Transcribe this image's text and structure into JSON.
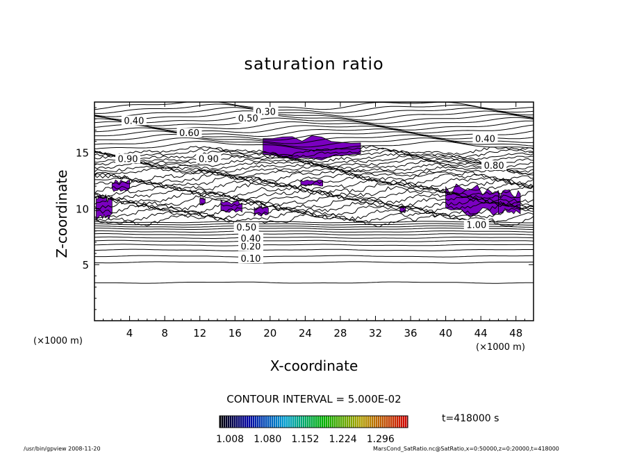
{
  "title": "saturation ratio",
  "contour_interval": "CONTOUR INTERVAL = 5.000E-02",
  "time_label": "t=418000 s",
  "footer_left": "/usr/bin/gpview   2008-11-20",
  "footer_right": "MarsCond_SatRatio.nc@SatRatio,x=0:50000,z=0:20000,t=418000",
  "colors": {
    "shade": "#7a00c0",
    "line": "#000000",
    "background": "#ffffff"
  },
  "chart_data": {
    "type": "contour",
    "title": "saturation ratio",
    "xlabel": "X-coordinate",
    "ylabel": "Z-coordinate",
    "x_unit": "(×1000 m)",
    "y_unit": "(×1000 m)",
    "xlim": [
      0,
      50
    ],
    "ylim": [
      0,
      19.5
    ],
    "xticks": [
      4,
      8,
      12,
      16,
      20,
      24,
      28,
      32,
      36,
      40,
      44,
      48
    ],
    "yticks": [
      5,
      10,
      15
    ],
    "contour_interval": 0.05,
    "contour_labels": [
      {
        "text": "0.10",
        "x": 17.8,
        "z": 5.5
      },
      {
        "text": "0.20",
        "x": 17.8,
        "z": 6.6
      },
      {
        "text": "0.40",
        "x": 17.8,
        "z": 7.3
      },
      {
        "text": "0.50",
        "x": 17.3,
        "z": 8.3
      },
      {
        "text": "1.00",
        "x": 43.5,
        "z": 8.5
      },
      {
        "text": "0.90",
        "x": 3.8,
        "z": 14.4
      },
      {
        "text": "0.90",
        "x": 13.0,
        "z": 14.4
      },
      {
        "text": "0.60",
        "x": 10.8,
        "z": 16.7
      },
      {
        "text": "0.40",
        "x": 4.5,
        "z": 17.8
      },
      {
        "text": "0.30",
        "x": 19.5,
        "z": 18.6
      },
      {
        "text": "0.50",
        "x": 17.5,
        "z": 18.0
      },
      {
        "text": "0.40",
        "x": 44.5,
        "z": 16.2
      },
      {
        "text": "0.80",
        "x": 45.5,
        "z": 13.8
      }
    ],
    "shaded_regions": [
      {
        "x": [
          0.2,
          2.0
        ],
        "z": [
          9.0,
          11.3
        ]
      },
      {
        "x": [
          2.0,
          4.0
        ],
        "z": [
          11.5,
          12.6
        ]
      },
      {
        "x": [
          23.5,
          26.0
        ],
        "z": [
          12.0,
          12.6
        ]
      },
      {
        "x": [
          19.2,
          30.3
        ],
        "z": [
          14.3,
          16.6
        ]
      },
      {
        "x": [
          40.0,
          46.0
        ],
        "z": [
          9.3,
          12.2
        ]
      },
      {
        "x": [
          46.0,
          48.5
        ],
        "z": [
          9.5,
          11.7
        ]
      },
      {
        "x": [
          12.0,
          12.6
        ],
        "z": [
          10.3,
          11.0
        ]
      },
      {
        "x": [
          14.4,
          16.8
        ],
        "z": [
          9.5,
          10.8
        ]
      },
      {
        "x": [
          18.2,
          19.8
        ],
        "z": [
          9.3,
          10.3
        ]
      },
      {
        "x": [
          34.8,
          35.4
        ],
        "z": [
          9.6,
          10.2
        ]
      }
    ],
    "colorbar": {
      "ticks": [
        "1.008",
        "1.080",
        "1.152",
        "1.224",
        "1.296"
      ],
      "range": [
        1.008,
        1.368
      ]
    }
  }
}
